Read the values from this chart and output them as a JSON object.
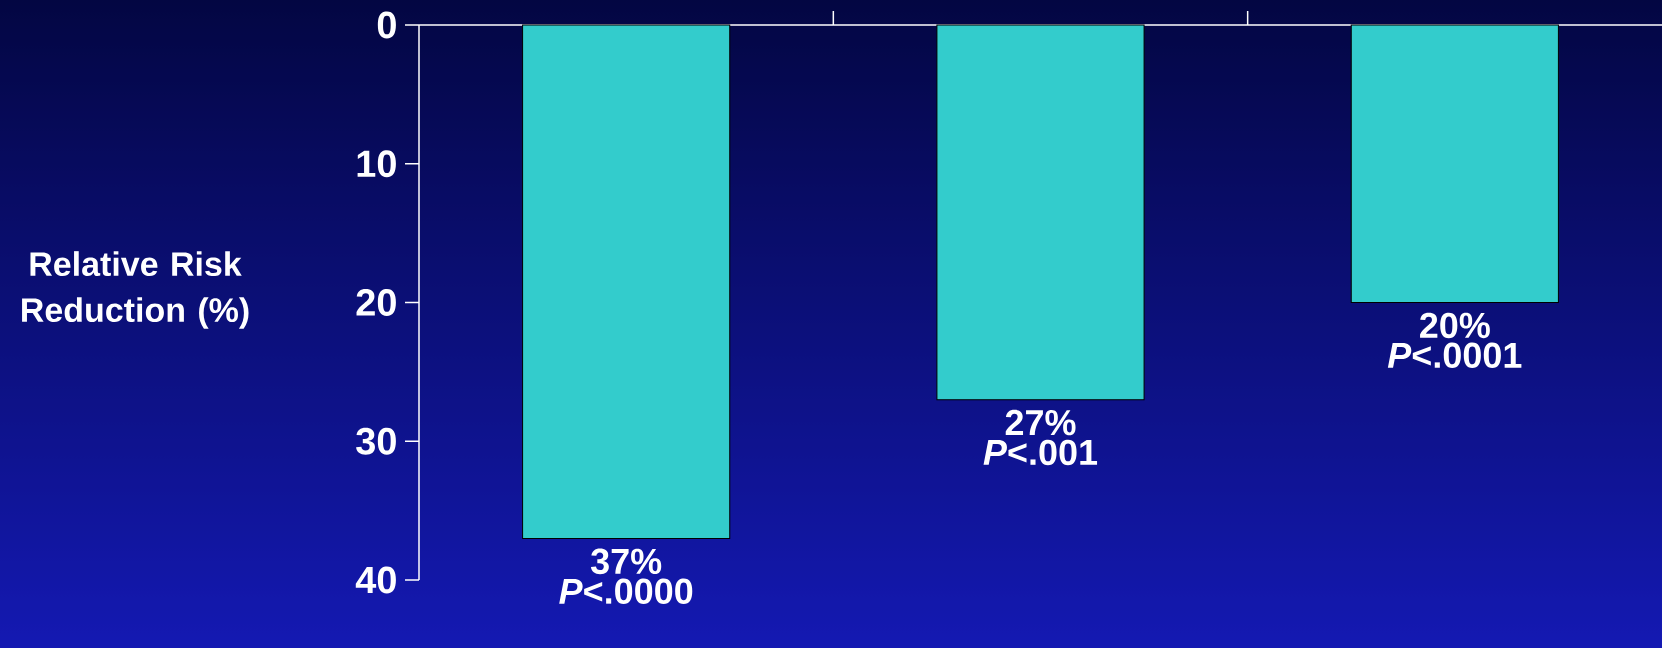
{
  "chart_data": {
    "type": "bar",
    "ylabel": "Relative Risk Reduction (%)",
    "categories": [
      null,
      null,
      null
    ],
    "values": [
      37,
      27,
      20
    ],
    "color": "#33cccc",
    "value_labels": [
      "37%",
      "27%",
      "20%"
    ],
    "annotations": [
      "*P*<.0000",
      "*P*<.001",
      "*P*<.0001"
    ],
    "ylim": [
      40,
      0
    ],
    "yticks": [
      0,
      10,
      20,
      30,
      40
    ]
  }
}
